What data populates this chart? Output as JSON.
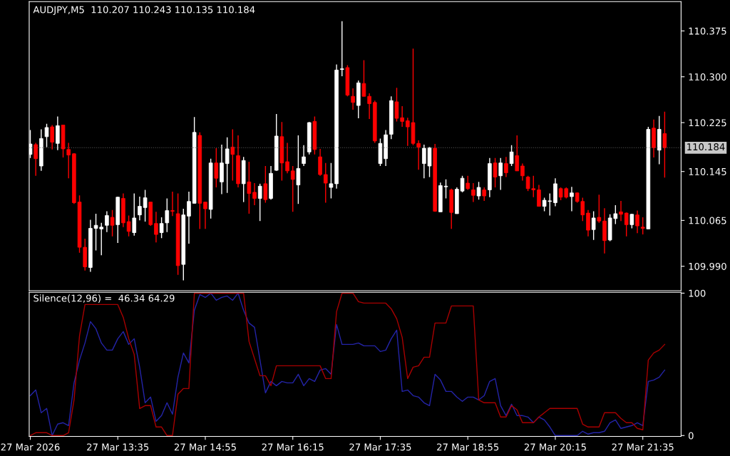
{
  "chart_data": [
    {
      "type": "candlestick",
      "title": "AUDJPY,M5  110.207 110.243 110.135 110.184",
      "x": [
        "2026-03-27T12:15",
        "2026-03-27T12:20",
        "2026-03-27T12:25",
        "2026-03-27T12:30",
        "2026-03-27T12:35",
        "2026-03-27T12:40",
        "2026-03-27T12:45",
        "2026-03-27T12:50",
        "2026-03-27T12:55",
        "2026-03-27T13:00",
        "2026-03-27T13:05",
        "2026-03-27T13:10",
        "2026-03-27T13:15",
        "2026-03-27T13:20",
        "2026-03-27T13:25",
        "2026-03-27T13:30",
        "2026-03-27T13:35",
        "2026-03-27T13:40",
        "2026-03-27T13:45",
        "2026-03-27T13:50",
        "2026-03-27T13:55",
        "2026-03-27T14:00",
        "2026-03-27T14:05",
        "2026-03-27T14:10",
        "2026-03-27T14:15",
        "2026-03-27T14:20",
        "2026-03-27T14:25",
        "2026-03-27T14:30",
        "2026-03-27T14:35",
        "2026-03-27T14:40",
        "2026-03-27T14:45",
        "2026-03-27T14:50",
        "2026-03-27T14:55",
        "2026-03-27T15:00",
        "2026-03-27T15:05",
        "2026-03-27T15:10",
        "2026-03-27T15:15",
        "2026-03-27T15:20",
        "2026-03-27T15:25",
        "2026-03-27T15:30",
        "2026-03-27T15:35",
        "2026-03-27T15:40",
        "2026-03-27T15:45",
        "2026-03-27T15:50",
        "2026-03-27T15:55",
        "2026-03-27T16:00",
        "2026-03-27T16:05",
        "2026-03-27T16:10",
        "2026-03-27T16:15",
        "2026-03-27T16:20",
        "2026-03-27T16:25",
        "2026-03-27T16:30",
        "2026-03-27T16:35",
        "2026-03-27T16:40",
        "2026-03-27T16:45",
        "2026-03-27T16:50",
        "2026-03-27T16:55",
        "2026-03-27T17:00",
        "2026-03-27T17:05",
        "2026-03-27T17:10",
        "2026-03-27T17:15",
        "2026-03-27T17:20",
        "2026-03-27T17:25",
        "2026-03-27T17:30",
        "2026-03-27T17:35",
        "2026-03-27T17:40",
        "2026-03-27T17:45",
        "2026-03-27T17:50",
        "2026-03-27T17:55",
        "2026-03-27T18:00",
        "2026-03-27T18:05",
        "2026-03-27T18:10",
        "2026-03-27T18:15",
        "2026-03-27T18:20",
        "2026-03-27T18:25",
        "2026-03-27T18:30",
        "2026-03-27T18:35",
        "2026-03-27T18:40",
        "2026-03-27T18:45",
        "2026-03-27T18:50",
        "2026-03-27T18:55",
        "2026-03-27T19:00",
        "2026-03-27T19:05",
        "2026-03-27T19:10",
        "2026-03-27T19:15",
        "2026-03-27T19:20",
        "2026-03-27T19:25",
        "2026-03-27T19:30",
        "2026-03-27T19:35",
        "2026-03-27T19:40",
        "2026-03-27T19:45",
        "2026-03-27T19:50",
        "2026-03-27T19:55",
        "2026-03-27T20:00",
        "2026-03-27T20:05",
        "2026-03-27T20:10",
        "2026-03-27T20:15",
        "2026-03-27T20:20",
        "2026-03-27T20:25",
        "2026-03-27T20:30",
        "2026-03-27T20:35",
        "2026-03-27T20:40",
        "2026-03-27T20:45",
        "2026-03-27T20:50",
        "2026-03-27T20:55",
        "2026-03-27T21:00",
        "2026-03-27T21:05",
        "2026-03-27T21:10",
        "2026-03-27T21:15",
        "2026-03-27T21:20",
        "2026-03-27T21:25",
        "2026-03-27T21:30",
        "2026-03-27T21:35",
        "2026-03-27T21:40",
        "2026-03-27T21:45",
        "2026-03-27T21:50",
        "2026-03-27T21:55"
      ],
      "ohlc": [
        [
          110.173,
          110.213,
          110.167,
          110.19
        ],
        [
          110.189,
          110.192,
          110.138,
          110.166
        ],
        [
          110.154,
          110.214,
          110.146,
          110.199
        ],
        [
          110.202,
          110.223,
          110.185,
          110.217
        ],
        [
          110.218,
          110.221,
          110.181,
          110.193
        ],
        [
          110.191,
          110.235,
          110.18,
          110.22
        ],
        [
          110.221,
          110.221,
          110.168,
          110.182
        ],
        [
          110.181,
          110.192,
          110.134,
          110.172
        ],
        [
          110.174,
          110.175,
          110.092,
          110.094
        ],
        [
          110.095,
          110.106,
          110.012,
          110.021
        ],
        [
          110.021,
          110.035,
          109.983,
          109.989
        ],
        [
          109.988,
          110.066,
          109.981,
          110.052
        ],
        [
          110.052,
          110.076,
          110.016,
          110.057
        ],
        [
          110.051,
          110.061,
          110.008,
          110.054
        ],
        [
          110.057,
          110.08,
          110.046,
          110.073
        ],
        [
          110.07,
          110.082,
          110.039,
          110.057
        ],
        [
          110.058,
          110.104,
          110.028,
          110.103
        ],
        [
          110.101,
          110.109,
          110.054,
          110.061
        ],
        [
          110.063,
          110.073,
          110.039,
          110.047
        ],
        [
          110.045,
          110.109,
          110.04,
          110.069
        ],
        [
          110.074,
          110.104,
          110.065,
          110.088
        ],
        [
          110.086,
          110.115,
          110.063,
          110.102
        ],
        [
          110.095,
          110.095,
          110.056,
          110.058
        ],
        [
          110.06,
          110.079,
          110.029,
          110.042
        ],
        [
          110.045,
          110.07,
          110.036,
          110.06
        ],
        [
          110.061,
          110.101,
          110.046,
          110.081
        ],
        [
          110.081,
          110.112,
          110.072,
          110.08
        ],
        [
          110.076,
          110.109,
          109.976,
          109.991
        ],
        [
          109.993,
          110.084,
          109.967,
          110.074
        ],
        [
          110.072,
          110.112,
          110.027,
          110.096
        ],
        [
          110.093,
          110.234,
          110.093,
          110.209
        ],
        [
          110.204,
          110.209,
          110.051,
          110.093
        ],
        [
          110.095,
          110.095,
          110.051,
          110.084
        ],
        [
          110.083,
          110.166,
          110.068,
          110.159
        ],
        [
          110.159,
          110.183,
          110.119,
          110.134
        ],
        [
          110.128,
          110.189,
          110.108,
          110.159
        ],
        [
          110.158,
          110.201,
          110.11,
          110.182
        ],
        [
          110.185,
          110.214,
          110.13,
          110.173
        ],
        [
          110.171,
          110.204,
          110.119,
          110.125
        ],
        [
          110.125,
          110.169,
          110.095,
          110.163
        ],
        [
          110.128,
          110.161,
          110.076,
          110.109
        ],
        [
          110.111,
          110.126,
          110.09,
          110.101
        ],
        [
          110.101,
          110.125,
          110.064,
          110.121
        ],
        [
          110.125,
          110.154,
          110.094,
          110.099
        ],
        [
          110.101,
          110.154,
          110.099,
          110.142
        ],
        [
          110.147,
          110.239,
          110.146,
          110.203
        ],
        [
          110.202,
          110.226,
          110.13,
          110.159
        ],
        [
          110.161,
          110.192,
          110.142,
          110.146
        ],
        [
          110.146,
          110.154,
          110.079,
          110.132
        ],
        [
          110.123,
          110.204,
          110.092,
          110.15
        ],
        [
          110.158,
          110.188,
          110.154,
          110.169
        ],
        [
          110.177,
          110.226,
          110.173,
          110.225
        ],
        [
          110.227,
          110.235,
          110.173,
          110.181
        ],
        [
          110.169,
          110.182,
          110.138,
          110.14
        ],
        [
          110.14,
          110.159,
          110.094,
          110.126
        ],
        [
          110.119,
          110.159,
          110.101,
          110.125
        ],
        [
          110.125,
          110.32,
          110.117,
          110.311
        ],
        [
          110.312,
          110.391,
          110.301,
          110.313
        ],
        [
          110.315,
          110.319,
          110.268,
          110.27
        ],
        [
          110.268,
          110.281,
          110.246,
          110.258
        ],
        [
          110.253,
          110.294,
          110.232,
          110.29
        ],
        [
          110.289,
          110.327,
          110.268,
          110.268
        ],
        [
          110.268,
          110.273,
          110.231,
          110.256
        ],
        [
          110.258,
          110.261,
          110.192,
          110.195
        ],
        [
          110.158,
          110.199,
          110.154,
          110.191
        ],
        [
          110.166,
          110.213,
          110.154,
          110.205
        ],
        [
          110.206,
          110.268,
          110.198,
          110.261
        ],
        [
          110.259,
          110.282,
          110.227,
          110.232
        ],
        [
          110.233,
          110.252,
          110.218,
          110.227
        ],
        [
          110.228,
          110.233,
          110.187,
          110.218
        ],
        [
          110.225,
          110.346,
          110.188,
          110.191
        ],
        [
          110.191,
          110.196,
          110.148,
          110.185
        ],
        [
          110.158,
          110.189,
          110.134,
          110.183
        ],
        [
          110.154,
          110.185,
          110.136,
          110.184
        ],
        [
          110.183,
          110.19,
          110.079,
          110.08
        ],
        [
          110.079,
          110.127,
          110.079,
          110.122
        ],
        [
          110.12,
          110.132,
          110.101,
          110.121
        ],
        [
          110.115,
          110.117,
          110.051,
          110.078
        ],
        [
          110.076,
          110.119,
          110.076,
          110.116
        ],
        [
          110.113,
          110.138,
          110.111,
          110.134
        ],
        [
          110.126,
          110.138,
          110.115,
          110.117
        ],
        [
          110.115,
          110.126,
          110.095,
          110.106
        ],
        [
          110.105,
          110.128,
          110.099,
          110.119
        ],
        [
          110.115,
          110.119,
          110.097,
          110.105
        ],
        [
          110.115,
          110.167,
          110.103,
          110.158
        ],
        [
          110.159,
          110.167,
          110.119,
          110.136
        ],
        [
          110.138,
          110.167,
          110.115,
          110.159
        ],
        [
          110.158,
          110.169,
          110.136,
          110.143
        ],
        [
          110.158,
          110.188,
          110.154,
          110.177
        ],
        [
          110.171,
          110.204,
          110.146,
          110.146
        ],
        [
          110.154,
          110.158,
          110.13,
          110.138
        ],
        [
          110.136,
          110.138,
          110.113,
          110.117
        ],
        [
          110.117,
          110.138,
          110.103,
          110.115
        ],
        [
          110.115,
          110.123,
          110.088,
          110.088
        ],
        [
          110.088,
          110.102,
          110.08,
          110.098
        ],
        [
          110.096,
          110.109,
          110.073,
          110.097
        ],
        [
          110.094,
          110.134,
          110.088,
          110.125
        ],
        [
          110.117,
          110.119,
          110.098,
          110.103
        ],
        [
          110.117,
          110.119,
          110.101,
          110.103
        ],
        [
          110.104,
          110.12,
          110.08,
          110.11
        ],
        [
          110.11,
          110.111,
          110.094,
          110.096
        ],
        [
          110.096,
          110.102,
          110.064,
          110.074
        ],
        [
          110.077,
          110.082,
          110.039,
          110.049
        ],
        [
          110.05,
          110.08,
          110.033,
          110.069
        ],
        [
          110.07,
          110.107,
          110.061,
          110.064
        ],
        [
          110.064,
          110.085,
          110.011,
          110.032
        ],
        [
          110.033,
          110.075,
          110.031,
          110.069
        ],
        [
          110.068,
          110.09,
          110.059,
          110.076
        ],
        [
          110.079,
          110.097,
          110.064,
          110.075
        ],
        [
          110.077,
          110.078,
          110.039,
          110.058
        ],
        [
          110.058,
          110.076,
          110.052,
          110.075
        ],
        [
          110.074,
          110.081,
          110.044,
          110.056
        ],
        [
          110.054,
          110.07,
          110.042,
          110.052
        ],
        [
          110.051,
          110.218,
          110.051,
          110.214
        ],
        [
          110.216,
          110.23,
          110.168,
          110.184
        ],
        [
          110.18,
          110.236,
          110.157,
          110.214
        ],
        [
          110.207,
          110.243,
          110.135,
          110.184
        ]
      ],
      "colors": [
        "#ffffff",
        "#ff0000",
        "#ffffff",
        "#ffffff",
        "#ff0000",
        "#ffffff",
        "#ff0000",
        "#ff0000",
        "#ff0000",
        "#ff0000",
        "#ff0000",
        "#ffffff",
        "#ffffff",
        "#ffffff",
        "#ffffff",
        "#ff0000",
        "#ffffff",
        "#ff0000",
        "#ff0000",
        "#ffffff",
        "#ffffff",
        "#ffffff",
        "#ff0000",
        "#ff0000",
        "#ffffff",
        "#ffffff",
        "#ff0000",
        "#ff0000",
        "#ffffff",
        "#ffffff",
        "#ffffff",
        "#ff0000",
        "#ff0000",
        "#ffffff",
        "#ff0000",
        "#ffffff",
        "#ffffff",
        "#ff0000",
        "#ff0000",
        "#ffffff",
        "#ff0000",
        "#ff0000",
        "#ffffff",
        "#ff0000",
        "#ffffff",
        "#ffffff",
        "#ff0000",
        "#ff0000",
        "#ff0000",
        "#ffffff",
        "#ffffff",
        "#ffffff",
        "#ff0000",
        "#ff0000",
        "#ff0000",
        "#ffffff",
        "#ffffff",
        "#ffffff",
        "#ff0000",
        "#ff0000",
        "#ffffff",
        "#ff0000",
        "#ff0000",
        "#ff0000",
        "#ffffff",
        "#ffffff",
        "#ffffff",
        "#ff0000",
        "#ff0000",
        "#ff0000",
        "#ff0000",
        "#ff0000",
        "#ffffff",
        "#ffffff",
        "#ff0000",
        "#ffffff",
        "#ffffff",
        "#ff0000",
        "#ffffff",
        "#ffffff",
        "#ff0000",
        "#ff0000",
        "#ffffff",
        "#ff0000",
        "#ffffff",
        "#ff0000",
        "#ffffff",
        "#ff0000",
        "#ffffff",
        "#ff0000",
        "#ff0000",
        "#ff0000",
        "#ff0000",
        "#ff0000",
        "#ffffff",
        "#ffffff",
        "#ffffff",
        "#ff0000",
        "#ff0000",
        "#ffffff",
        "#ff0000",
        "#ff0000",
        "#ff0000",
        "#ffffff",
        "#ff0000",
        "#ff0000",
        "#ffffff",
        "#ffffff",
        "#ff0000",
        "#ff0000",
        "#ffffff",
        "#ff0000",
        "#ff0000",
        "#ffffff",
        "#ff0000",
        "#ffffff",
        "#ff0000"
      ],
      "xlim": [
        "2026-03-27T12:14",
        "2026-03-27T22:10"
      ],
      "ylim": [
        109.95,
        110.423
      ],
      "yticks": [
        110.375,
        {
          "value": 110.3,
          "label": "110.300"
        },
        110.225,
        110.145,
        110.065,
        {
          "value": 109.99,
          "label": "109.990"
        }
      ],
      "tick_labels": "y",
      "ref_lines": [
        {
          "axis": "y",
          "value": 110.184,
          "label": "110.184",
          "color": "#5a5a5a",
          "line_style": "dotted"
        }
      ],
      "grid": false
    },
    {
      "type": "line",
      "title": "Silence(12,96) =  46.34 64.29",
      "x": [
        "2026-03-27T12:15",
        "2026-03-27T12:20",
        "2026-03-27T12:25",
        "2026-03-27T12:30",
        "2026-03-27T12:35",
        "2026-03-27T12:40",
        "2026-03-27T12:45",
        "2026-03-27T12:50",
        "2026-03-27T12:55",
        "2026-03-27T13:00",
        "2026-03-27T13:05",
        "2026-03-27T13:10",
        "2026-03-27T13:15",
        "2026-03-27T13:20",
        "2026-03-27T13:25",
        "2026-03-27T13:30",
        "2026-03-27T13:35",
        "2026-03-27T13:40",
        "2026-03-27T13:45",
        "2026-03-27T13:50",
        "2026-03-27T13:55",
        "2026-03-27T14:00",
        "2026-03-27T14:05",
        "2026-03-27T14:10",
        "2026-03-27T14:15",
        "2026-03-27T14:20",
        "2026-03-27T14:25",
        "2026-03-27T14:30",
        "2026-03-27T14:35",
        "2026-03-27T14:40",
        "2026-03-27T14:45",
        "2026-03-27T14:50",
        "2026-03-27T14:55",
        "2026-03-27T15:00",
        "2026-03-27T15:05",
        "2026-03-27T15:10",
        "2026-03-27T15:15",
        "2026-03-27T15:20",
        "2026-03-27T15:25",
        "2026-03-27T15:30",
        "2026-03-27T15:35",
        "2026-03-27T15:40",
        "2026-03-27T15:45",
        "2026-03-27T15:50",
        "2026-03-27T15:55",
        "2026-03-27T16:00",
        "2026-03-27T16:05",
        "2026-03-27T16:10",
        "2026-03-27T16:15",
        "2026-03-27T16:20",
        "2026-03-27T16:25",
        "2026-03-27T16:30",
        "2026-03-27T16:35",
        "2026-03-27T16:40",
        "2026-03-27T16:45",
        "2026-03-27T16:50",
        "2026-03-27T16:55",
        "2026-03-27T17:00",
        "2026-03-27T17:05",
        "2026-03-27T17:10",
        "2026-03-27T17:15",
        "2026-03-27T17:20",
        "2026-03-27T17:25",
        "2026-03-27T17:30",
        "2026-03-27T17:35",
        "2026-03-27T17:40",
        "2026-03-27T17:45",
        "2026-03-27T17:50",
        "2026-03-27T17:55",
        "2026-03-27T18:00",
        "2026-03-27T18:05",
        "2026-03-27T18:10",
        "2026-03-27T18:15",
        "2026-03-27T18:20",
        "2026-03-27T18:25",
        "2026-03-27T18:30",
        "2026-03-27T18:35",
        "2026-03-27T18:40",
        "2026-03-27T18:45",
        "2026-03-27T18:50",
        "2026-03-27T18:55",
        "2026-03-27T19:00",
        "2026-03-27T19:05",
        "2026-03-27T19:10",
        "2026-03-27T19:15",
        "2026-03-27T19:20",
        "2026-03-27T19:25",
        "2026-03-27T19:30",
        "2026-03-27T19:35",
        "2026-03-27T19:40",
        "2026-03-27T19:45",
        "2026-03-27T19:50",
        "2026-03-27T19:55",
        "2026-03-27T20:00",
        "2026-03-27T20:05",
        "2026-03-27T20:10",
        "2026-03-27T20:15",
        "2026-03-27T20:20",
        "2026-03-27T20:25",
        "2026-03-27T20:30",
        "2026-03-27T20:35",
        "2026-03-27T20:40",
        "2026-03-27T20:45",
        "2026-03-27T20:50",
        "2026-03-27T20:55",
        "2026-03-27T21:00",
        "2026-03-27T21:05",
        "2026-03-27T21:10",
        "2026-03-27T21:15",
        "2026-03-27T21:20",
        "2026-03-27T21:25",
        "2026-03-27T21:30",
        "2026-03-27T21:35",
        "2026-03-27T21:40",
        "2026-03-27T21:45",
        "2026-03-27T21:50",
        "2026-03-27T21:55"
      ],
      "series": [
        {
          "color": "#2424a8",
          "values": [
            28,
            32,
            16,
            19,
            0,
            8,
            9,
            7,
            37,
            53,
            65,
            80,
            75,
            65,
            60,
            60,
            68,
            73,
            64,
            68,
            48,
            23,
            27,
            10,
            14,
            23,
            15,
            41,
            58,
            51,
            88,
            99,
            97,
            100,
            95,
            97,
            98,
            95,
            100,
            88,
            79,
            76,
            53,
            30,
            38,
            35,
            38,
            37,
            37,
            43,
            35,
            40,
            38,
            46,
            47,
            43,
            78,
            64,
            64,
            64,
            65,
            63,
            63,
            63,
            59,
            60,
            68,
            74,
            31,
            32,
            28,
            27,
            23,
            21,
            43,
            39,
            31,
            31,
            27,
            24,
            27,
            27,
            25,
            28,
            38,
            40,
            21,
            14,
            22,
            14,
            14,
            13,
            9,
            13,
            11,
            6,
            0,
            0,
            0,
            0,
            0,
            3,
            1,
            2,
            2,
            3,
            9,
            11,
            5,
            6,
            7,
            9,
            7,
            38,
            39,
            41,
            46
          ]
        },
        {
          "color": "#a80000",
          "values": [
            0,
            2,
            2,
            2,
            0,
            0,
            0,
            2,
            25,
            70,
            92,
            92,
            92,
            92,
            92,
            92,
            92,
            83,
            68,
            57,
            19,
            21,
            21,
            6,
            6,
            0,
            0,
            29,
            33,
            33,
            100,
            100,
            100,
            100,
            100,
            100,
            100,
            100,
            100,
            100,
            66,
            54,
            42,
            42,
            35,
            49,
            49,
            49,
            49,
            49,
            49,
            49,
            49,
            49,
            40,
            40,
            87,
            100,
            100,
            100,
            94,
            93,
            93,
            93,
            93,
            93,
            89,
            82,
            69,
            40,
            48,
            49,
            55,
            55,
            79,
            79,
            79,
            91,
            91,
            91,
            91,
            91,
            25,
            23,
            23,
            23,
            13,
            13,
            21,
            18,
            9,
            9,
            9,
            13,
            16,
            19,
            19,
            19,
            19,
            19,
            19,
            8,
            6,
            6,
            6,
            16,
            16,
            16,
            12,
            9,
            9,
            5,
            4,
            53,
            58,
            60,
            64
          ]
        }
      ],
      "xlim": [
        "2026-03-27T12:14",
        "2026-03-27T22:10"
      ],
      "xticks": [
        {
          "value": "2026-03-27T12:15",
          "label": "27 Mar 2026"
        },
        {
          "value": "2026-03-27T13:35",
          "label": "27 Mar 13:35"
        },
        {
          "value": "2026-03-27T14:55",
          "label": "27 Mar 14:55"
        },
        {
          "value": "2026-03-27T16:15",
          "label": "27 Mar 16:15"
        },
        {
          "value": "2026-03-27T17:35",
          "label": "27 Mar 17:35"
        },
        {
          "value": "2026-03-27T18:55",
          "label": "27 Mar 18:55"
        },
        {
          "value": "2026-03-27T20:15",
          "label": "27 Mar 20:15"
        },
        {
          "value": "2026-03-27T21:35",
          "label": "27 Mar 21:35"
        }
      ],
      "ylim": [
        -0.6,
        100.6
      ],
      "yticks": [
        0,
        100
      ],
      "grid": false,
      "marker": "none",
      "line_style": "solid"
    }
  ]
}
